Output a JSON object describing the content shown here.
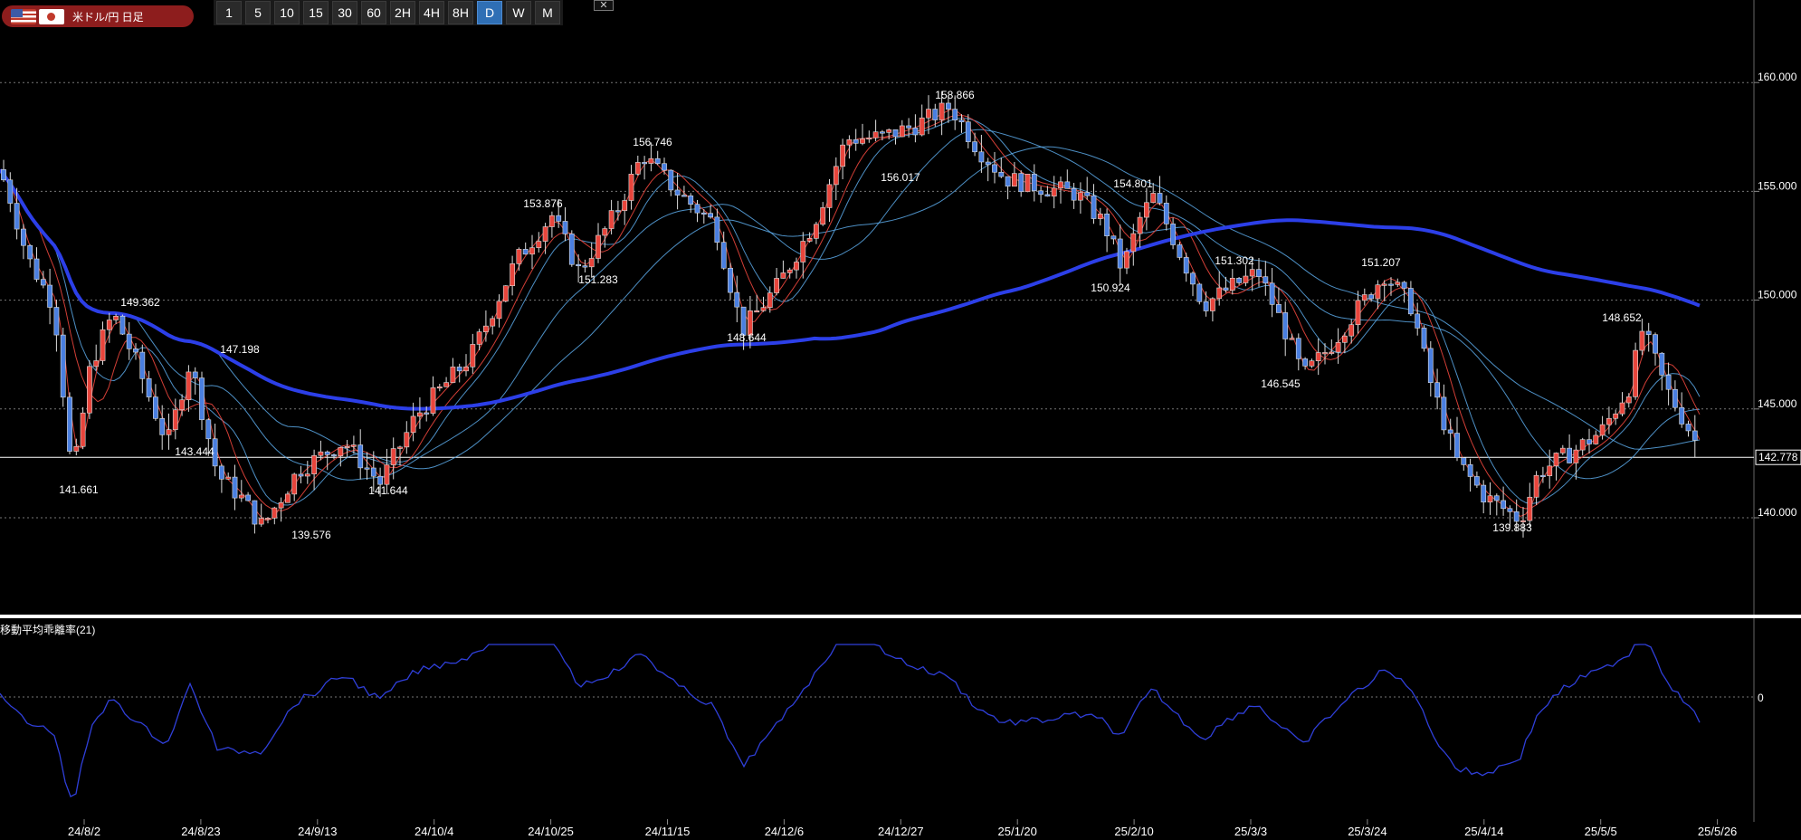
{
  "header": {
    "symbol_label": "米ドル/円 日足",
    "timeframes": [
      "1",
      "5",
      "10",
      "15",
      "30",
      "60",
      "2H",
      "4H",
      "8H",
      "D",
      "W",
      "M"
    ],
    "active_timeframe": "D",
    "close_label": "✕"
  },
  "price_axis": {
    "ticks": [
      "160.000",
      "155.000",
      "150.000",
      "145.000",
      "140.000"
    ],
    "current_price": "142.778"
  },
  "peak_labels": [
    "149.362",
    "147.198",
    "143.444",
    "141.661",
    "139.576",
    "141.644",
    "153.876",
    "151.283",
    "156.746",
    "156.017",
    "158.866",
    "148.644",
    "154.801",
    "150.924",
    "151.302",
    "146.545",
    "151.207",
    "148.652",
    "139.883"
  ],
  "indicator": {
    "label": "移動平均乖離率(21)",
    "zero_label": "0"
  },
  "date_axis": [
    "24/8/2",
    "24/8/23",
    "24/9/13",
    "24/10/4",
    "24/10/25",
    "24/11/15",
    "24/12/6",
    "24/12/27",
    "25/1/20",
    "25/2/10",
    "25/3/3",
    "25/3/24",
    "25/4/14",
    "25/5/5",
    "25/5/26"
  ],
  "colors": {
    "up_candle": "#e8453c",
    "down_candle": "#4a7fe0",
    "ma_long": "#2c3fe8",
    "ma_mid": "#7fe040",
    "ma_fast_red": "#e8453c",
    "ma_fast_blue": "#5aa8e6",
    "indicator_line": "#2f3fd9",
    "header_pill": "#8d1d1d"
  }
}
